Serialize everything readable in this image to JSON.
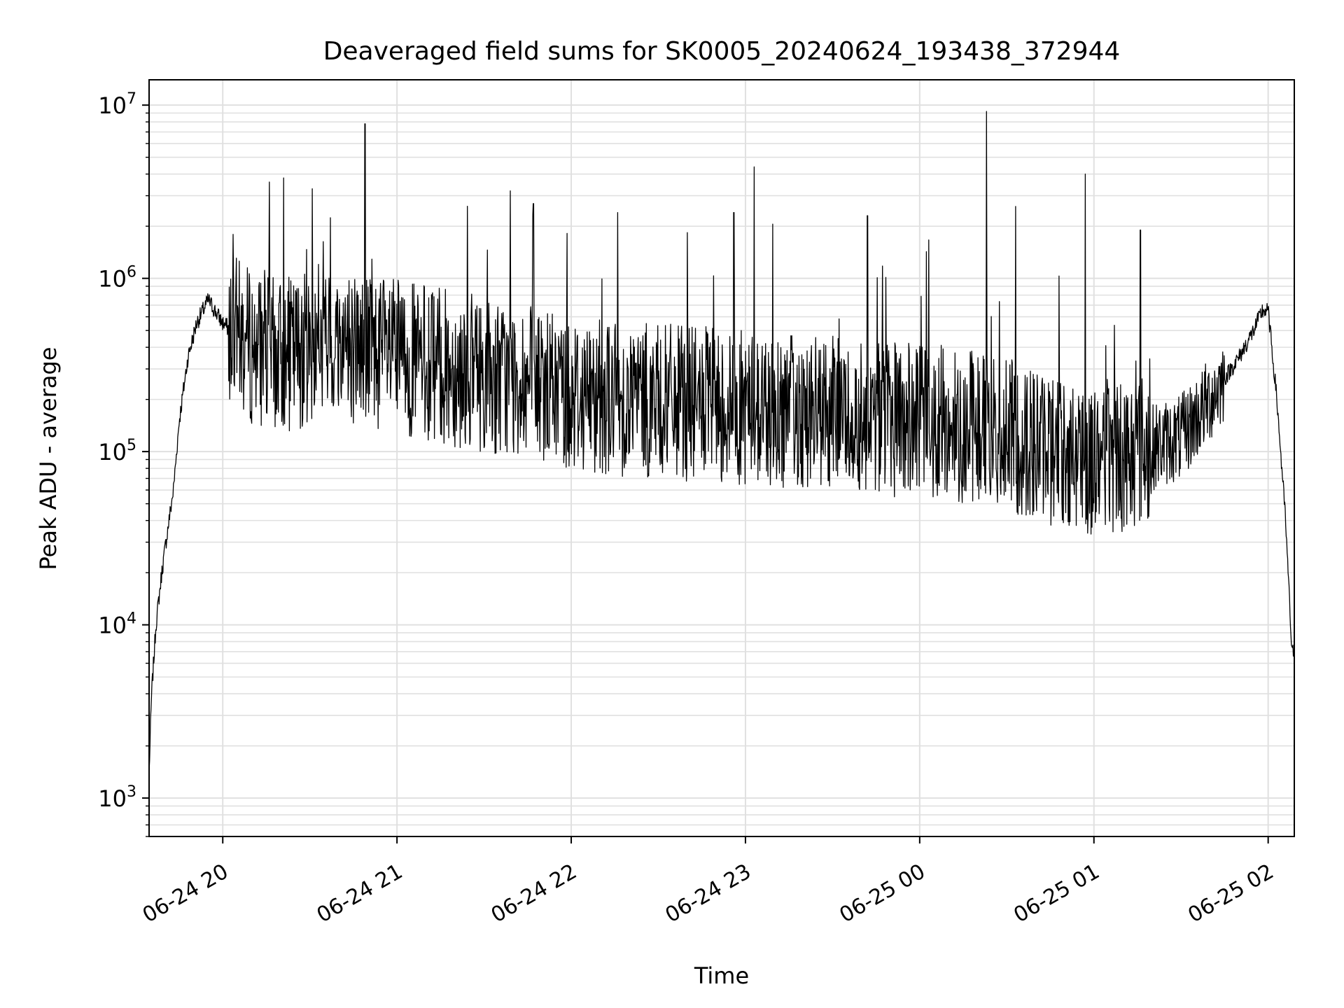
{
  "chart_data": {
    "type": "line",
    "title": "Deaveraged field sums for SK0005_20240624_193438_372944",
    "xlabel": "Time",
    "ylabel": "Peak ADU - average",
    "y_scale": "log",
    "ylim": [
      600,
      14000000
    ],
    "xlim": [
      "2024-06-24 19:34:38",
      "2024-06-25 02:09:00"
    ],
    "grid": true,
    "line_color": "#000000",
    "grid_color": "#e0e0e0",
    "x_ticks": [
      {
        "value": "2024-06-24 20:00",
        "label": "06-24 20"
      },
      {
        "value": "2024-06-24 21:00",
        "label": "06-24 21"
      },
      {
        "value": "2024-06-24 22:00",
        "label": "06-24 22"
      },
      {
        "value": "2024-06-24 23:00",
        "label": "06-24 23"
      },
      {
        "value": "2024-06-25 00:00",
        "label": "06-25 00"
      },
      {
        "value": "2024-06-25 01:00",
        "label": "06-25 01"
      },
      {
        "value": "2024-06-25 02:00",
        "label": "06-25 02"
      }
    ],
    "y_ticks": [
      {
        "value": 1000,
        "base": "10",
        "exp": "3"
      },
      {
        "value": 10000,
        "base": "10",
        "exp": "4"
      },
      {
        "value": 100000,
        "base": "10",
        "exp": "5"
      },
      {
        "value": 1000000,
        "base": "10",
        "exp": "6"
      },
      {
        "value": 10000000,
        "base": "10",
        "exp": "7"
      }
    ],
    "series": [
      {
        "x": [
          "2024-06-24 19:34:38",
          "2024-06-24 19:35:30",
          "2024-06-24 19:37:00",
          "2024-06-24 19:39:00",
          "2024-06-24 19:41:00",
          "2024-06-24 19:43:00",
          "2024-06-24 19:45:00",
          "2024-06-24 19:48:00",
          "2024-06-24 19:51:00",
          "2024-06-24 19:55:00",
          "2024-06-24 20:00:00",
          "2024-06-24 20:10:00",
          "2024-06-24 20:20:00",
          "2024-06-24 20:30:00",
          "2024-06-24 20:40:00",
          "2024-06-24 20:50:00",
          "2024-06-24 21:00:00",
          "2024-06-24 21:20:00",
          "2024-06-24 21:40:00",
          "2024-06-24 22:00:00",
          "2024-06-24 22:20:00",
          "2024-06-24 22:40:00",
          "2024-06-24 23:00:00",
          "2024-06-24 23:20:00",
          "2024-06-24 23:40:00",
          "2024-06-25 00:00:00",
          "2024-06-25 00:20:00",
          "2024-06-25 00:40:00",
          "2024-06-25 01:00:00",
          "2024-06-25 01:15:00",
          "2024-06-25 01:30:00",
          "2024-06-25 01:40:00",
          "2024-06-25 01:50:00",
          "2024-06-25 01:55:00",
          "2024-06-25 01:58:00",
          "2024-06-25 02:00:00",
          "2024-06-25 02:03:00",
          "2024-06-25 02:06:00",
          "2024-06-25 02:08:00",
          "2024-06-25 02:09:00"
        ],
        "y": [
          1400,
          4000,
          10000,
          20000,
          35000,
          60000,
          150000,
          350000,
          550000,
          750000,
          550000,
          400000,
          350000,
          400000,
          420000,
          400000,
          350000,
          300000,
          260000,
          220000,
          200000,
          190000,
          180000,
          170000,
          160000,
          150000,
          140000,
          110000,
          90000,
          100000,
          120000,
          200000,
          350000,
          500000,
          650000,
          650000,
          200000,
          40000,
          8000,
          6000
        ]
      }
    ],
    "spikes": [
      {
        "x": "2024-06-24 20:16:00",
        "y": 3600000
      },
      {
        "x": "2024-06-24 20:21:00",
        "y": 3800000
      },
      {
        "x": "2024-06-24 20:49:00",
        "y": 7800000
      },
      {
        "x": "2024-06-24 21:39:00",
        "y": 3200000
      },
      {
        "x": "2024-06-24 21:47:00",
        "y": 2700000
      },
      {
        "x": "2024-06-24 22:16:00",
        "y": 2400000
      },
      {
        "x": "2024-06-24 22:56:00",
        "y": 2400000
      },
      {
        "x": "2024-06-24 23:03:00",
        "y": 4400000
      },
      {
        "x": "2024-06-24 23:42:00",
        "y": 2300000
      },
      {
        "x": "2024-06-25 00:23:00",
        "y": 9200000
      },
      {
        "x": "2024-06-25 00:33:00",
        "y": 2600000
      },
      {
        "x": "2024-06-25 00:57:00",
        "y": 4000000
      },
      {
        "x": "2024-06-25 01:16:00",
        "y": 1900000
      }
    ]
  }
}
